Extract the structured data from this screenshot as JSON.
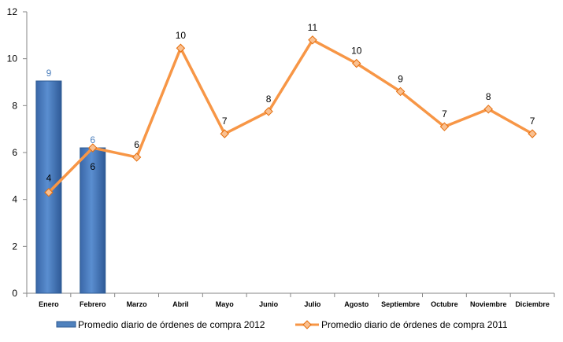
{
  "chart_data": {
    "type": "bar+line",
    "categories": [
      "Enero",
      "Febrero",
      "Marzo",
      "Abril",
      "Mayo",
      "Junio",
      "Julio",
      "Agosto",
      "Septiembre",
      "Octubre",
      "Noviembre",
      "Diciembre"
    ],
    "ylim": [
      0,
      12
    ],
    "yticks": [
      0,
      2,
      4,
      6,
      8,
      10,
      12
    ],
    "grid": false,
    "legend_position": "bottom",
    "series": [
      {
        "name": "Promedio diario de órdenes de compra 2012",
        "kind": "bar",
        "color": "#4F81BD",
        "values": [
          9.05,
          6.2,
          null,
          null,
          null,
          null,
          null,
          null,
          null,
          null,
          null,
          null
        ],
        "labels": [
          "9",
          "6",
          null,
          null,
          null,
          null,
          null,
          null,
          null,
          null,
          null,
          null
        ]
      },
      {
        "name": "Promedio diario de órdenes de compra 2011",
        "kind": "line",
        "color": "#F79646",
        "values": [
          4.3,
          6.2,
          5.8,
          10.45,
          6.8,
          7.75,
          10.8,
          9.8,
          8.6,
          7.1,
          7.85,
          6.8
        ],
        "labels": [
          "4",
          "6",
          "6",
          "10",
          "7",
          "8",
          "11",
          "10",
          "9",
          "7",
          "8",
          "7"
        ]
      }
    ]
  }
}
